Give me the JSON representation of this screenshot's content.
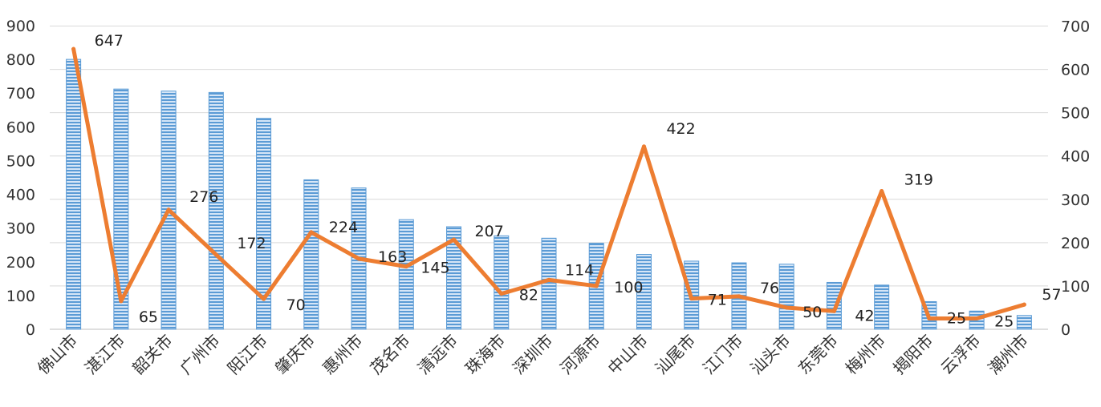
{
  "chart_data": {
    "type": "bar",
    "categories": [
      "佛山市",
      "湛江市",
      "韶关市",
      "广州市",
      "阳江市",
      "肇庆市",
      "惠州市",
      "茂名市",
      "清远市",
      "珠海市",
      "深圳市",
      "河源市",
      "中山市",
      "汕尾市",
      "江门市",
      "汕头市",
      "东莞市",
      "梅州市",
      "揭阳市",
      "云浮市",
      "潮州市"
    ],
    "series": [
      {
        "type": "bar",
        "axis": "left",
        "color": "#5b9bd5",
        "values": [
          800,
          712,
          706,
          702,
          625,
          443,
          419,
          325,
          304,
          277,
          270,
          255,
          222,
          202,
          197,
          193,
          139,
          131,
          82,
          54,
          41
        ]
      },
      {
        "type": "line",
        "axis": "right",
        "color": "#ed7d31",
        "values": [
          647,
          65,
          276,
          172,
          70,
          224,
          163,
          145,
          207,
          82,
          114,
          100,
          422,
          71,
          76,
          50,
          42,
          319,
          25,
          25,
          57
        ],
        "labels": [
          "647",
          "65",
          "276",
          "172",
          "70",
          "224",
          "163",
          "145",
          "207",
          "82",
          "114",
          "100",
          "422",
          "71",
          "76",
          "50",
          "42",
          "319",
          "25",
          "25",
          "57"
        ]
      }
    ],
    "y_left": {
      "ticks": [
        "900",
        "800",
        "700",
        "600",
        "500",
        "400",
        "300",
        "200",
        "100",
        "0"
      ],
      "ylim": [
        0,
        900
      ]
    },
    "y_right": {
      "ticks": [
        "700",
        "600",
        "500",
        "400",
        "300",
        "200",
        "100",
        "0"
      ],
      "ylim": [
        0,
        700
      ]
    },
    "grid": true,
    "legend": "none"
  }
}
